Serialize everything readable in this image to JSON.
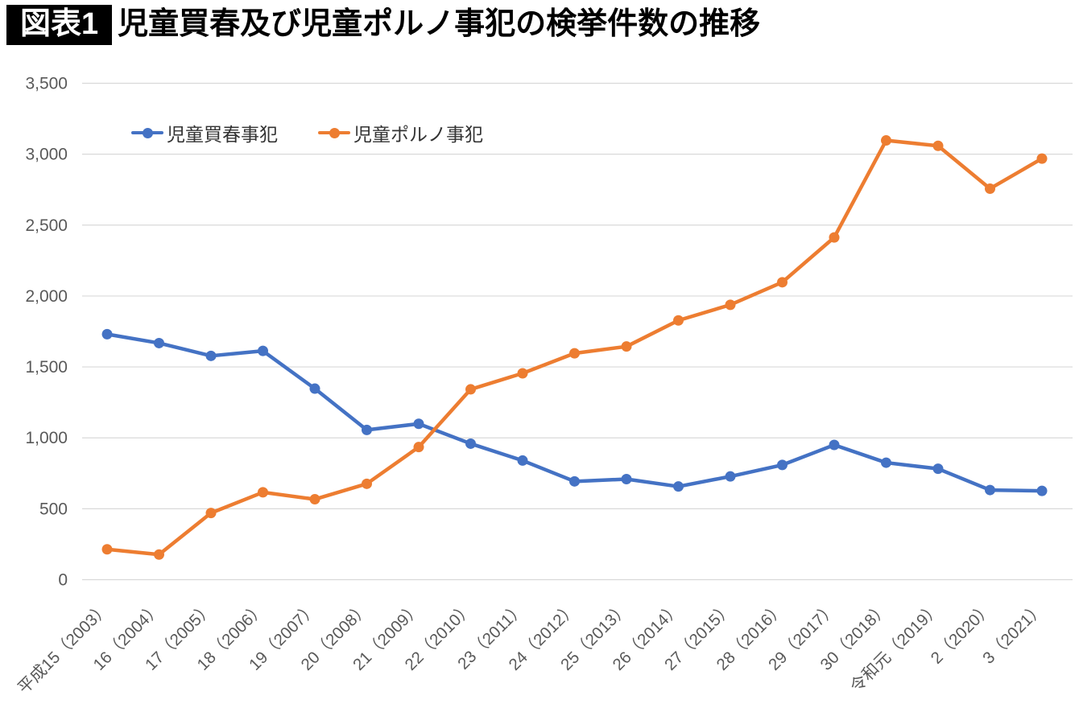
{
  "header": {
    "badge": "図表1",
    "title": "児童買春及び児童ポルノ事犯の検挙件数の推移"
  },
  "chart_data": {
    "type": "line",
    "title": "児童買春及び児童ポルノ事犯の検挙件数の推移",
    "categories": [
      "平成15（2003）",
      "16（2004）",
      "17（2005）",
      "18（2006）",
      "19（2007）",
      "20（2008）",
      "21（2009）",
      "22（2010）",
      "23（2011）",
      "24（2012）",
      "25（2013）",
      "26（2014）",
      "27（2015）",
      "28（2016）",
      "29（2017）",
      "30（2018）",
      "令和元（2019）",
      "2（2020）",
      "3（2021）"
    ],
    "series": [
      {
        "name": "児童買春事犯",
        "color": "#4472C4",
        "values": [
          1731,
          1668,
          1578,
          1613,
          1347,
          1056,
          1099,
          959,
          840,
          693,
          709,
          657,
          728,
          809,
          950,
          825,
          782,
          632,
          626
        ]
      },
      {
        "name": "児童ポルノ事犯",
        "color": "#ED7D31",
        "values": [
          214,
          177,
          470,
          616,
          567,
          676,
          935,
          1342,
          1455,
          1596,
          1644,
          1828,
          1938,
          2097,
          2413,
          3097,
          3059,
          2757,
          2969
        ]
      }
    ],
    "xlabel": "",
    "ylabel": "",
    "ylim": [
      0,
      3500
    ],
    "ytick_step": 500,
    "ytick_labels": [
      "0",
      "500",
      "1,000",
      "1,500",
      "2,000",
      "2,500",
      "3,000",
      "3,500"
    ],
    "grid": "horizontal",
    "legend_position": "top-left-inline",
    "axis_text_color": "#595959",
    "gridline_color": "#D9D9D9"
  }
}
